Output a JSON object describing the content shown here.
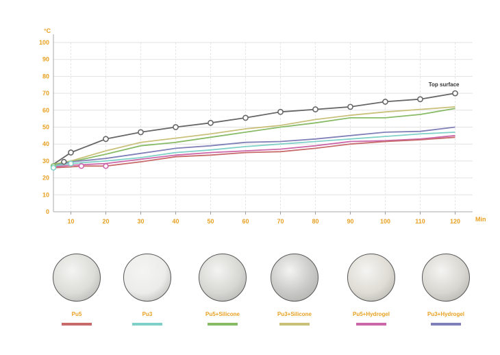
{
  "chart_data": {
    "type": "line",
    "y_unit": "°C",
    "x_unit": "Min",
    "xlim": [
      5,
      125
    ],
    "ylim": [
      0,
      100
    ],
    "x_ticks": [
      10,
      20,
      30,
      40,
      50,
      60,
      70,
      80,
      90,
      100,
      110,
      120
    ],
    "y_ticks": [
      0,
      10,
      20,
      30,
      40,
      50,
      60,
      70,
      80,
      90,
      100
    ],
    "grid": true,
    "annotation": {
      "text": "Top surface",
      "x": 120,
      "y": 70
    },
    "series": [
      {
        "name": "Top surface",
        "color": "#666666",
        "marker": "circle",
        "x": [
          5,
          10,
          20,
          30,
          40,
          50,
          60,
          70,
          80,
          90,
          100,
          110,
          120
        ],
        "y": [
          28,
          35,
          43,
          47,
          50,
          52.5,
          55.5,
          59,
          60.5,
          62,
          65,
          66.5,
          70
        ],
        "marker_x": [
          10,
          20,
          30,
          40,
          50,
          60,
          70,
          80,
          90,
          100,
          110,
          120
        ]
      },
      {
        "name": "Pu3+Silicone",
        "color": "#c9c07a",
        "x": [
          5,
          10,
          20,
          30,
          40,
          50,
          60,
          70,
          80,
          90,
          100,
          110,
          120
        ],
        "y": [
          28,
          30,
          36,
          41,
          43.5,
          46,
          49,
          51,
          54.5,
          57,
          59,
          60.5,
          62
        ]
      },
      {
        "name": "Pu5+Silicone",
        "color": "#88bb66",
        "x": [
          5,
          10,
          20,
          30,
          40,
          50,
          60,
          70,
          80,
          90,
          95,
          100,
          110,
          120
        ],
        "y": [
          28,
          29.5,
          34,
          39,
          41,
          44,
          47,
          50,
          52.5,
          55.5,
          55.5,
          55.5,
          57.5,
          61
        ]
      },
      {
        "name": "Pu3+Hydrogel",
        "color": "#8080b8",
        "x": [
          5,
          10,
          20,
          30,
          40,
          50,
          60,
          70,
          80,
          90,
          100,
          110,
          120
        ],
        "y": [
          27,
          29.5,
          31.5,
          34.5,
          37.5,
          39,
          41,
          41.5,
          43,
          45,
          47,
          47.5,
          50
        ]
      },
      {
        "name": "Pu3",
        "color": "#7fd0c8",
        "x": [
          5,
          10,
          20,
          30,
          40,
          50,
          60,
          70,
          80,
          90,
          100,
          110,
          120
        ],
        "y": [
          27,
          28.5,
          30,
          32,
          35,
          36.5,
          38.5,
          40,
          41.5,
          43,
          44.5,
          46,
          47
        ]
      },
      {
        "name": "Pu5+Hydrogel",
        "color": "#cc66aa",
        "x": [
          5,
          10,
          20,
          30,
          40,
          50,
          60,
          70,
          80,
          90,
          100,
          110,
          120
        ],
        "y": [
          26.5,
          27.5,
          28.5,
          31,
          33.5,
          35,
          36,
          37,
          39,
          41.5,
          42,
          43,
          45
        ]
      },
      {
        "name": "Pu5",
        "color": "#c86a6a",
        "x": [
          5,
          10,
          13,
          20,
          30,
          40,
          50,
          60,
          70,
          80,
          90,
          100,
          110,
          120
        ],
        "y": [
          26,
          26.5,
          27,
          27,
          29.5,
          32.5,
          33.5,
          35,
          35.5,
          37.5,
          40,
          41.5,
          42.5,
          44
        ]
      }
    ],
    "start_markers": [
      {
        "x": 5,
        "y": 27,
        "color": "#88bb66"
      },
      {
        "x": 5,
        "y": 26,
        "color": "#7fd0c8"
      },
      {
        "x": 8,
        "y": 29.5,
        "color": "#666666"
      },
      {
        "x": 10,
        "y": 28.5,
        "color": "#7fd0c8"
      },
      {
        "x": 13,
        "y": 27,
        "color": "#cc66aa"
      },
      {
        "x": 20,
        "y": 27,
        "color": "#cc66aa"
      }
    ]
  },
  "samples": [
    {
      "label": "Pu5",
      "color": "#c86a6a",
      "texture": "#dcdcd8"
    },
    {
      "label": "Pu3",
      "color": "#7fd0c8",
      "texture": "#ececea"
    },
    {
      "label": "Pu5+Silicone",
      "color": "#88bb66",
      "texture": "#d6d6d2"
    },
    {
      "label": "Pu3+Silicone",
      "color": "#c9c07a",
      "texture": "#c8c8c6"
    },
    {
      "label": "Pu5+Hydrogel",
      "color": "#cc66aa",
      "texture": "#dedcd4"
    },
    {
      "label": "Pu3+Hydrogel",
      "color": "#8080b8",
      "texture": "#d8d6d0"
    }
  ]
}
